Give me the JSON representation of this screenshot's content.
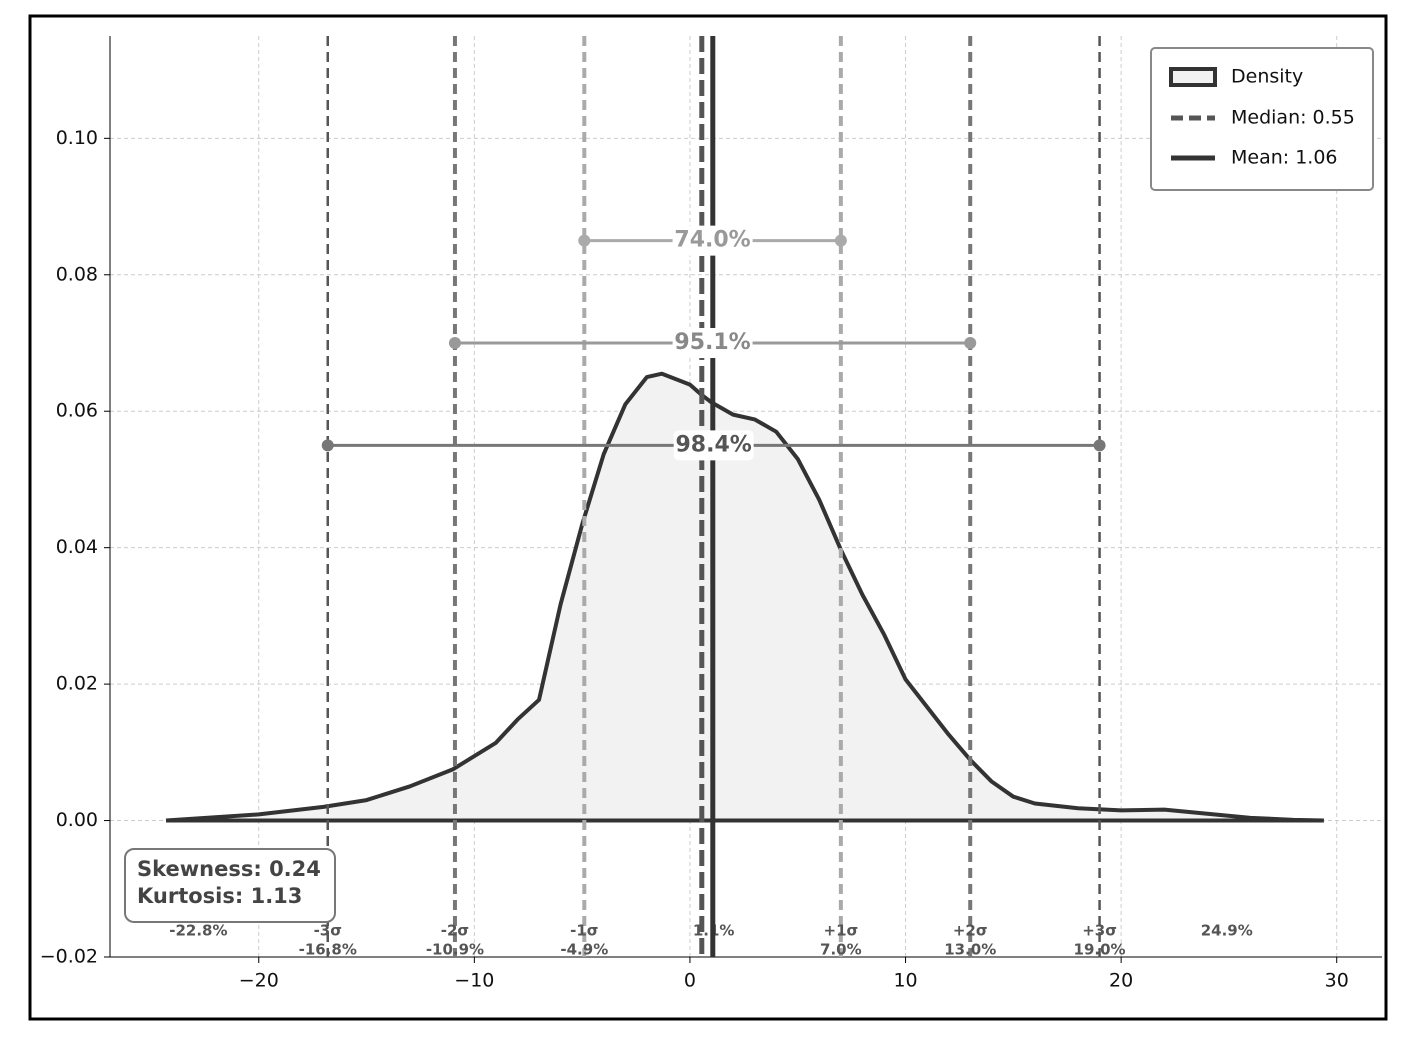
{
  "chart_data": {
    "type": "density",
    "x": [
      -24.3,
      -20,
      -17,
      -15,
      -13,
      -11,
      -9,
      -8,
      -7,
      -6,
      -5,
      -4,
      -3,
      -2,
      -1.3,
      0,
      0.5,
      1,
      2,
      3,
      4,
      5,
      6,
      7,
      8,
      9,
      10,
      12,
      13,
      14,
      15,
      16,
      18,
      20,
      22,
      24,
      26,
      28,
      29.4
    ],
    "series": [
      {
        "name": "Density",
        "color": "#333333",
        "fill": "#f2f2f2",
        "values": [
          0,
          0.0009,
          0.002,
          0.003,
          0.005,
          0.0075,
          0.0114,
          0.0148,
          0.0177,
          0.0317,
          0.0434,
          0.0537,
          0.061,
          0.065,
          0.0655,
          0.0639,
          0.0625,
          0.0613,
          0.0595,
          0.0588,
          0.057,
          0.053,
          0.047,
          0.0397,
          0.0331,
          0.0273,
          0.0207,
          0.0126,
          0.0089,
          0.0057,
          0.0035,
          0.0025,
          0.0018,
          0.0015,
          0.0016,
          0.001,
          0.0004,
          0.0001,
          0
        ]
      }
    ],
    "median": {
      "name": "Median: 0.55",
      "value": 0.55,
      "color": "#555555"
    },
    "mean": {
      "name": "Mean: 1.06",
      "value": 1.06,
      "color": "#333333"
    },
    "sigma_lines": [
      {
        "label": "-3σ",
        "x": -16.8,
        "x_label": "-16.8%",
        "color": "#555555"
      },
      {
        "label": "-2σ",
        "x": -10.9,
        "x_label": "-10.9%",
        "color": "#777777"
      },
      {
        "label": "-1σ",
        "x": -4.9,
        "x_label": "-4.9%",
        "color": "#aaaaaa"
      },
      {
        "label": "+1σ",
        "x": 7.0,
        "x_label": "7.0%",
        "color": "#aaaaaa"
      },
      {
        "label": "+2σ",
        "x": 13.0,
        "x_label": "13.0%",
        "color": "#777777"
      },
      {
        "label": "+3σ",
        "x": 19.0,
        "x_label": "19.0%",
        "color": "#555555"
      }
    ],
    "point_labels": [
      {
        "x": -22.8,
        "label": "-22.8%"
      },
      {
        "x": 1.1,
        "label": "1.1%"
      },
      {
        "x": 24.9,
        "label": "24.9%"
      }
    ],
    "intervals": [
      {
        "label": "74.0%",
        "from": -4.9,
        "to": 7.0,
        "y": 0.085,
        "color": "#aaaaaa",
        "text_color": "#999999"
      },
      {
        "label": "95.1%",
        "from": -10.9,
        "to": 13.0,
        "y": 0.07,
        "color": "#999999",
        "text_color": "#888888"
      },
      {
        "label": "98.4%",
        "from": -16.8,
        "to": 19.0,
        "y": 0.055,
        "color": "#777777",
        "text_color": "#555555"
      }
    ],
    "stats": [
      "Skewness: 0.24",
      "Kurtosis: 1.13"
    ],
    "xlim": [
      -26.9,
      32.1
    ],
    "ylim": [
      -0.02,
      0.115
    ],
    "xticks": [
      {
        "value": -20,
        "label": "−20"
      },
      {
        "value": -10,
        "label": "−10"
      },
      0,
      10,
      20,
      30
    ],
    "yticks": [
      {
        "value": -0.02,
        "label": "−0.02"
      },
      {
        "value": 0,
        "label": "0.00"
      },
      {
        "value": 0.02,
        "label": "0.02"
      },
      {
        "value": 0.04,
        "label": "0.04"
      },
      {
        "value": 0.06,
        "label": "0.06"
      },
      {
        "value": 0.08,
        "label": "0.08"
      },
      {
        "value": 0.1,
        "label": "0.10"
      }
    ],
    "grid": true,
    "legend": "upper right"
  }
}
